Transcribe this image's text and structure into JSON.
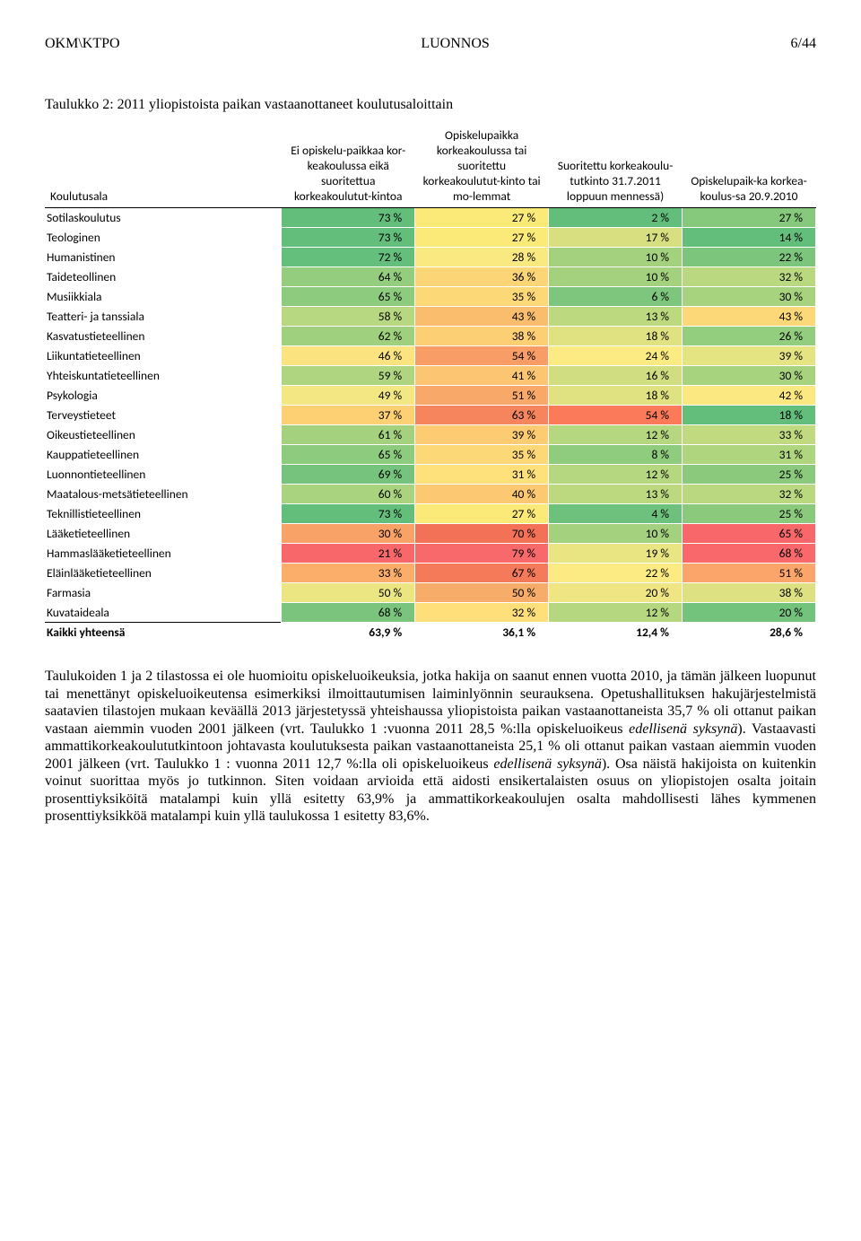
{
  "header": {
    "left": "OKM\\KTPO",
    "center": "LUONNOS",
    "right": "6/44"
  },
  "table_title": "Taulukko 2: 2011 yliopistoista paikan vastaanottaneet koulutusaloittain",
  "columns": {
    "c0": "Koulutusala",
    "c1": "Ei opiskelu-paikkaa kor-keakoulussa eikä suoritettua korkeakoulutut-kintoa",
    "c2": "Opiskelupaikka korkeakoulussa tai suoritettu korkeakoulutut-kinto tai mo-lemmat",
    "c3": "Suoritettu korkeakoulu-tutkinto 31.7.2011 loppuun mennessä)",
    "c4": "Opiskelupaik-ka korkea-koulus-sa 20.9.2010"
  },
  "color_scale": {
    "comment": "per-cell background colors approximated from a green-yellow-red scale",
    "map": {
      "73a": "#63be7b",
      "27a": "#fbea77",
      "2": "#63be7b",
      "27b": "#86c97d",
      "73b": "#63be7b",
      "27c": "#fbea77",
      "17": "#d7df81",
      "14": "#63be7b",
      "72": "#65bf7c",
      "28": "#f9e980",
      "10a": "#a3d17e",
      "22": "#7cc57d",
      "64": "#94cd7e",
      "36": "#fcd576",
      "10b": "#a3d17e",
      "32a": "#b9d880",
      "65a": "#8dcb7e",
      "35a": "#fdd877",
      "6": "#7ec67d",
      "30a": "#a7d37e",
      "58": "#b7d780",
      "43a": "#fabd6e",
      "13a": "#bcd980",
      "43b": "#fdd878",
      "62": "#9fd07e",
      "38a": "#fdcf74",
      "18a": "#e0e282",
      "26": "#93cd7e",
      "46": "#fbe47f",
      "54a": "#f79d65",
      "24": "#fceb82",
      "39": "#e5e482",
      "59": "#afd580",
      "41": "#fcc571",
      "16": "#d0de81",
      "30b": "#a7d37e",
      "49": "#f3e783",
      "51": "#f8a868",
      "18b": "#e0e282",
      "42": "#fbe881",
      "37": "#fdd073",
      "63a": "#f6855e",
      "54b": "#fa7a5a",
      "18c": "#63be7b",
      "61": "#a4d17e",
      "39b": "#fccb72",
      "12a": "#b4d780",
      "33": "#c1da80",
      "65b": "#8dcb7e",
      "35b": "#fdd877",
      "8": "#8fcc7e",
      "31": "#b0d57f",
      "69": "#76c37d",
      "31b": "#fee17a",
      "12b": "#b4d780",
      "25a": "#8bca7d",
      "60": "#a9d37e",
      "40": "#fcc871",
      "13b": "#bcd980",
      "32b": "#b9d880",
      "73c": "#63be7b",
      "27d": "#fbea77",
      "4": "#6dc17c",
      "25b": "#8bca7d",
      "30c": "#f9a267",
      "70": "#f37257",
      "10c": "#a3d17e",
      "65c": "#f8686b",
      "21": "#f8686b",
      "79": "#f8696b",
      "19": "#e8e582",
      "68a": "#f9696b",
      "33b": "#faae69",
      "67": "#f47a5a",
      "22b": "#fceb82",
      "51b": "#fba56a",
      "50a": "#ece682",
      "50b": "#f8ac69",
      "20a": "#efe683",
      "38b": "#dde182",
      "68b": "#7bc47d",
      "32c": "#fedf79",
      "12c": "#b4d780",
      "20b": "#74c37c"
    }
  },
  "rows": [
    {
      "label": "Sotilaskoulutus",
      "v": [
        "73 %",
        "27 %",
        "2 %",
        "27 %"
      ],
      "k": [
        "73a",
        "27a",
        "2",
        "27b"
      ]
    },
    {
      "label": "Teologinen",
      "v": [
        "73 %",
        "27 %",
        "17 %",
        "14 %"
      ],
      "k": [
        "73b",
        "27c",
        "17",
        "14"
      ]
    },
    {
      "label": "Humanistinen",
      "v": [
        "72 %",
        "28 %",
        "10 %",
        "22 %"
      ],
      "k": [
        "72",
        "28",
        "10a",
        "22"
      ]
    },
    {
      "label": "Taideteollinen",
      "v": [
        "64 %",
        "36 %",
        "10 %",
        "32 %"
      ],
      "k": [
        "64",
        "36",
        "10b",
        "32a"
      ]
    },
    {
      "label": "Musiikkiala",
      "v": [
        "65 %",
        "35 %",
        "6 %",
        "30 %"
      ],
      "k": [
        "65a",
        "35a",
        "6",
        "30a"
      ]
    },
    {
      "label": "Teatteri- ja tanssiala",
      "v": [
        "58 %",
        "43 %",
        "13 %",
        "43 %"
      ],
      "k": [
        "58",
        "43a",
        "13a",
        "43b"
      ]
    },
    {
      "label": "Kasvatustieteellinen",
      "v": [
        "62 %",
        "38 %",
        "18 %",
        "26 %"
      ],
      "k": [
        "62",
        "38a",
        "18a",
        "26"
      ]
    },
    {
      "label": "Liikuntatieteellinen",
      "v": [
        "46 %",
        "54 %",
        "24 %",
        "39 %"
      ],
      "k": [
        "46",
        "54a",
        "24",
        "39"
      ]
    },
    {
      "label": "Yhteiskuntatieteellinen",
      "v": [
        "59 %",
        "41 %",
        "16 %",
        "30 %"
      ],
      "k": [
        "59",
        "41",
        "16",
        "30b"
      ]
    },
    {
      "label": "Psykologia",
      "v": [
        "49 %",
        "51 %",
        "18 %",
        "42 %"
      ],
      "k": [
        "49",
        "51",
        "18b",
        "42"
      ]
    },
    {
      "label": "Terveystieteet",
      "v": [
        "37 %",
        "63 %",
        "54 %",
        "18 %"
      ],
      "k": [
        "37",
        "63a",
        "54b",
        "18c"
      ]
    },
    {
      "label": "Oikeustieteellinen",
      "v": [
        "61 %",
        "39 %",
        "12 %",
        "33 %"
      ],
      "k": [
        "61",
        "39b",
        "12a",
        "33"
      ]
    },
    {
      "label": "Kauppatieteellinen",
      "v": [
        "65 %",
        "35 %",
        "8 %",
        "31 %"
      ],
      "k": [
        "65b",
        "35b",
        "8",
        "31"
      ]
    },
    {
      "label": "Luonnontieteellinen",
      "v": [
        "69 %",
        "31 %",
        "12 %",
        "25 %"
      ],
      "k": [
        "69",
        "31b",
        "12b",
        "25a"
      ]
    },
    {
      "label": "Maatalous-metsätieteellinen",
      "v": [
        "60 %",
        "40 %",
        "13 %",
        "32 %"
      ],
      "k": [
        "60",
        "40",
        "13b",
        "32b"
      ]
    },
    {
      "label": "Teknillistieteellinen",
      "v": [
        "73 %",
        "27 %",
        "4 %",
        "25 %"
      ],
      "k": [
        "73c",
        "27d",
        "4",
        "25b"
      ]
    },
    {
      "label": "Lääketieteellinen",
      "v": [
        "30 %",
        "70 %",
        "10 %",
        "65 %"
      ],
      "k": [
        "30c",
        "70",
        "10c",
        "65c"
      ]
    },
    {
      "label": "Hammaslääketieteellinen",
      "v": [
        "21 %",
        "79 %",
        "19 %",
        "68 %"
      ],
      "k": [
        "21",
        "79",
        "19",
        "68a"
      ]
    },
    {
      "label": "Eläinlääketieteellinen",
      "v": [
        "33 %",
        "67 %",
        "22 %",
        "51 %"
      ],
      "k": [
        "33b",
        "67",
        "22b",
        "51b"
      ]
    },
    {
      "label": "Farmasia",
      "v": [
        "50 %",
        "50 %",
        "20 %",
        "38 %"
      ],
      "k": [
        "50a",
        "50b",
        "20a",
        "38b"
      ]
    },
    {
      "label": "Kuvataideala",
      "v": [
        "68 %",
        "32 %",
        "12 %",
        "20 %"
      ],
      "k": [
        "68b",
        "32c",
        "12c",
        "20b"
      ]
    }
  ],
  "total": {
    "label": "Kaikki yhteensä",
    "v": [
      "63,9 %",
      "36,1 %",
      "12,4 %",
      "28,6 %"
    ]
  },
  "body_text": {
    "p1a": "Taulukoiden 1 ja 2 tilastossa ei ole huomioitu opiskeluoikeuksia, jotka hakija on saanut ennen vuotta 2010, ja tämän jälkeen luopunut tai menettänyt opiskeluoikeutensa esimerkiksi ilmoittautumisen laiminlyönnin seurauksena. Opetushallituksen hakujärjestelmistä saatavien tilastojen mukaan keväällä 2013 järjestetyssä yhteishaussa yliopistoista paikan vastaanottaneista 35,7 % oli ottanut paikan vastaan aiemmin vuoden 2001 jälkeen (vrt. Taulukko 1 :vuonna 2011 28,5 %:lla opiskeluoikeus ",
    "p1i1": "edellisenä syksynä",
    "p1b": "). Vastaavasti ammattikorkeakoulututkintoon johtavasta koulutuksesta paikan vastaanottaneista 25,1 % oli ottanut paikan vastaan aiemmin vuoden 2001 jälkeen (vrt. Taulukko 1 : vuonna 2011 12,7 %:lla oli opiskeluoikeus ",
    "p1i2": "edellisenä syksynä",
    "p1c": "). Osa näistä hakijoista on kuitenkin voinut suorittaa myös jo tutkinnon. Siten voidaan arvioida että aidosti ensikertalaisten osuus on yliopistojen osalta joitain prosenttiyksiköitä matalampi kuin yllä esitetty 63,9% ja ammattikorkeakoulujen osalta mahdollisesti lähes kymmenen prosenttiyksikköä matalampi kuin yllä taulukossa 1 esitetty 83,6%."
  }
}
